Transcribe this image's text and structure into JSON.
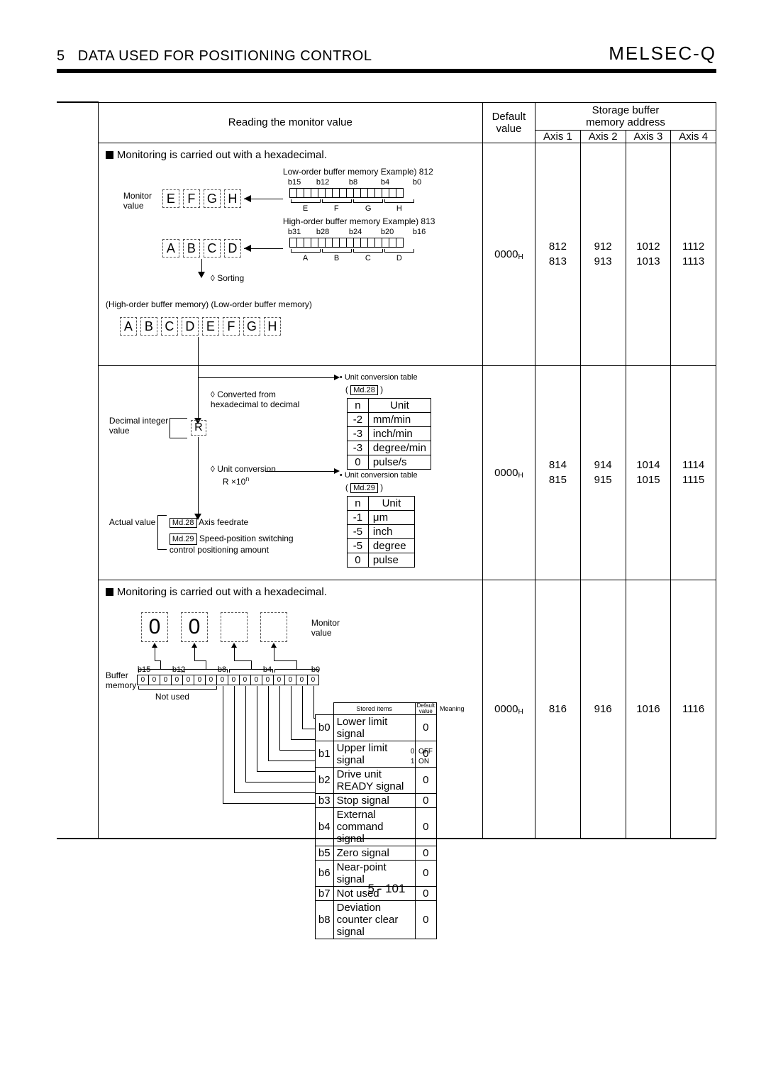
{
  "header": {
    "chapter": "5",
    "title": "DATA USED FOR POSITIONING CONTROL",
    "brand": "MELSEC-Q"
  },
  "table_headers": {
    "reading": "Reading the monitor value",
    "default": "Default\nvalue",
    "storage": "Storage buffer\nmemory address",
    "axis1": "Axis 1",
    "axis2": "Axis 2",
    "axis3": "Axis 3",
    "axis4": "Axis 4"
  },
  "row1": {
    "note": "Monitoring is carried out with a hexadecimal.",
    "monitor_label": "Monitor\nvalue",
    "efgh": [
      "E",
      "F",
      "G",
      "H"
    ],
    "abcd": [
      "A",
      "B",
      "C",
      "D"
    ],
    "low_title": "Low-order buffer memory   Example) 812",
    "high_title": "High-order buffer memory   Example) 813",
    "bits_low": [
      "b15",
      "b12",
      "b8",
      "b4",
      "b0"
    ],
    "bits_high": [
      "b31",
      "b28",
      "b24",
      "b20",
      "b16"
    ],
    "under_low": [
      "E",
      "F",
      "G",
      "H"
    ],
    "under_high": [
      "A",
      "B",
      "C",
      "D"
    ],
    "sorting": "Sorting",
    "memo": "(High-order buffer memory)  (Low-order buffer memory)",
    "combined": [
      "A",
      "B",
      "C",
      "D",
      "E",
      "F",
      "G",
      "H"
    ],
    "default": "0000",
    "axis": [
      "812\n813",
      "912\n913",
      "1012\n1013",
      "1112\n1113"
    ]
  },
  "row2": {
    "conv_note": "Converted from\nhexadecimal to decimal",
    "decimal_label": "Decimal integer\nvalue",
    "unit_conv": "Unit conversion",
    "formula": "R ×10",
    "formula_exp": "n",
    "actual": "Actual value",
    "md28_label": "Md.28",
    "md28_text": "Axis feedrate",
    "md29_label": "Md.29",
    "md29_text": "Speed-position switching\ncontrol positioning amount",
    "table1_title": "Unit conversion table",
    "table1_ref": "Md.28",
    "table1": {
      "cols": [
        "n",
        "Unit"
      ],
      "rows": [
        [
          "-2",
          "mm/min"
        ],
        [
          "-3",
          "inch/min"
        ],
        [
          "-3",
          "degree/min"
        ],
        [
          "0",
          "pulse/s"
        ]
      ]
    },
    "table2_title": "Unit conversion table",
    "table2_ref": "Md.29",
    "table2": {
      "cols": [
        "n",
        "Unit"
      ],
      "rows": [
        [
          "-1",
          "μm"
        ],
        [
          "-5",
          "inch"
        ],
        [
          "-5",
          "degree"
        ],
        [
          "0",
          "pulse"
        ]
      ]
    },
    "default": "0000",
    "axis": [
      "814\n815",
      "914\n915",
      "1014\n1015",
      "1114\n1115"
    ]
  },
  "row3": {
    "note": "Monitoring is carried out with a hexadecimal.",
    "monitor_label": "Monitor\nvalue",
    "digits": [
      "0",
      "0",
      "",
      ""
    ],
    "buffer_label": "Buffer\nmemory",
    "bitlabels": [
      "b15",
      "b12",
      "b8",
      "b4",
      "b0"
    ],
    "bitvalues": [
      "0",
      "0",
      "0",
      "0",
      "0",
      "0",
      "0",
      "0",
      "0",
      "0",
      "0",
      "0",
      "0",
      "0",
      "0",
      "0"
    ],
    "not_used": "Not used",
    "signal_header": [
      "",
      "Stored items",
      "Default\nvalue",
      "Meaning"
    ],
    "signals": [
      [
        "b0",
        "Lower limit signal",
        "0"
      ],
      [
        "b1",
        "Upper limit signal",
        "0"
      ],
      [
        "b2",
        "Drive unit READY signal",
        "0"
      ],
      [
        "b3",
        "Stop signal",
        "0"
      ],
      [
        "b4",
        "External command signal",
        "0"
      ],
      [
        "b5",
        "Zero signal",
        "0"
      ],
      [
        "b6",
        "Near-point signal",
        "0"
      ],
      [
        "b7",
        "Not used",
        "0"
      ],
      [
        "b8",
        "Deviation counter clear signal",
        "0"
      ]
    ],
    "meaning": "0: OFF\n1: ON",
    "default": "0000",
    "axis": [
      "816",
      "916",
      "1016",
      "1116"
    ]
  },
  "page_number": "5 - 101"
}
